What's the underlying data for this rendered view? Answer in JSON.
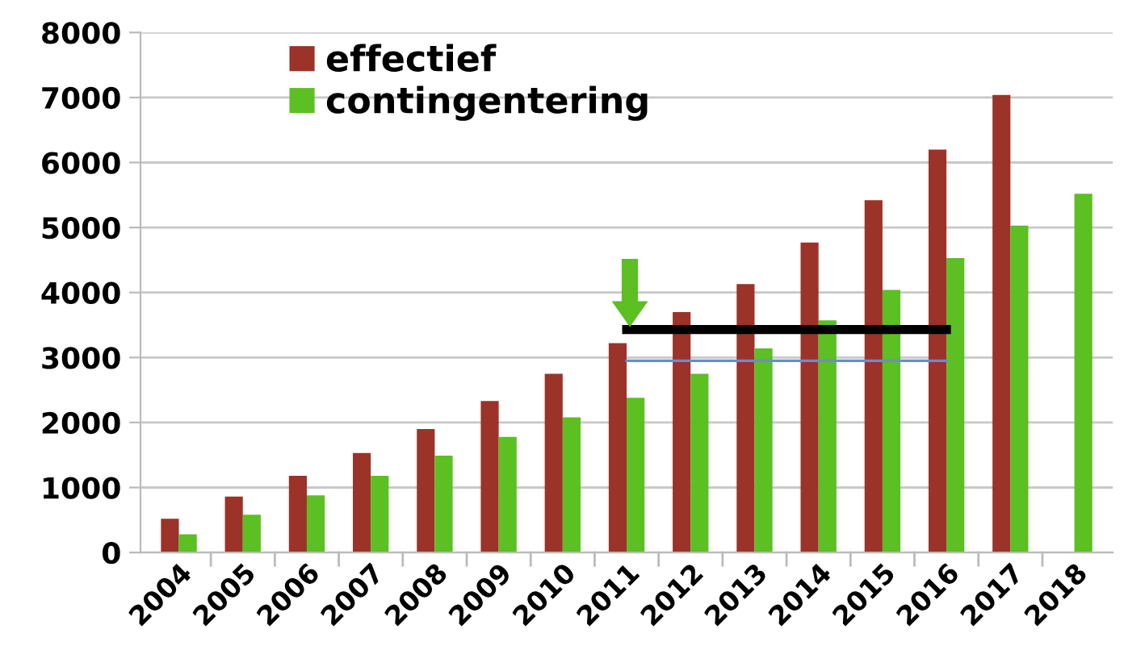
{
  "chart_data": {
    "type": "bar",
    "categories": [
      "2004",
      "2005",
      "2006",
      "2007",
      "2008",
      "2009",
      "2010",
      "2011",
      "2012",
      "2013",
      "2014",
      "2015",
      "2016",
      "2017",
      "2018"
    ],
    "series": [
      {
        "name": "effectief",
        "color": "#9b3328",
        "values": [
          520,
          860,
          1180,
          1530,
          1900,
          2330,
          2750,
          3220,
          3700,
          4130,
          4770,
          5420,
          6200,
          7040,
          null
        ]
      },
      {
        "name": "contingentering",
        "color": "#5cbf22",
        "values": [
          280,
          580,
          880,
          1180,
          1490,
          1780,
          2080,
          2380,
          2750,
          3140,
          3570,
          4040,
          4530,
          5030,
          5520
        ]
      },
      {
        "type": "line",
        "color": "#000000",
        "values": [
          null,
          null,
          null,
          null,
          null,
          null,
          null,
          3430,
          3430,
          3430,
          3430,
          3430,
          3430,
          null,
          null
        ]
      },
      {
        "type": "line",
        "color": "#6a8ccc",
        "values": [
          null,
          null,
          null,
          null,
          null,
          null,
          null,
          2950,
          2950,
          2950,
          2950,
          2950,
          2950,
          null,
          null
        ]
      }
    ],
    "ylim": [
      0,
      8000
    ],
    "yticks": [
      0,
      1000,
      2000,
      3000,
      4000,
      5000,
      6000,
      7000,
      8000
    ],
    "grid": "y",
    "legend": "top left"
  }
}
